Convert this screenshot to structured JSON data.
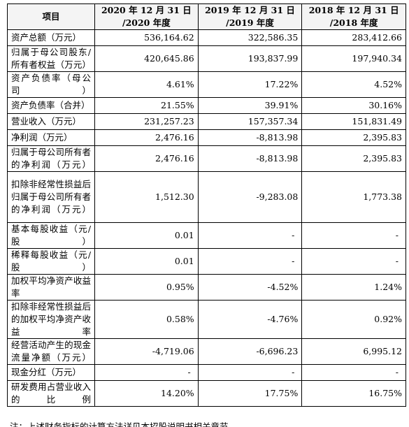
{
  "table": {
    "headers": {
      "item": "项目",
      "col1_line1": "2020 年 12 月 31 日",
      "col1_line2": "/2020 年度",
      "col2_line1": "2019 年 12 月 31 日",
      "col2_line2": "/2019 年度",
      "col3_line1": "2018 年 12 月 31 日",
      "col3_line2": "/2018 年度"
    },
    "rows": [
      {
        "label": "资产总额（万元）",
        "v2020": "536,164.62",
        "v2019": "322,586.35",
        "v2018": "283,412.66"
      },
      {
        "label": "归属于母公司股东/所有者权益（万元）",
        "v2020": "420,645.86",
        "v2019": "193,837.99",
        "v2018": "197,940.34"
      },
      {
        "label": "资产负债率（母公司）",
        "v2020": "4.61%",
        "v2019": "17.22%",
        "v2018": "4.52%"
      },
      {
        "label": "资产负债率（合并）",
        "v2020": "21.55%",
        "v2019": "39.91%",
        "v2018": "30.16%"
      },
      {
        "label": "营业收入（万元）",
        "v2020": "231,257.23",
        "v2019": "157,357.34",
        "v2018": "151,831.49"
      },
      {
        "label": "净利润（万元）",
        "v2020": "2,476.16",
        "v2019": "-8,813.98",
        "v2018": "2,395.83"
      },
      {
        "label": "归属于母公司所有者的净利润（万元）",
        "v2020": "2,476.16",
        "v2019": "-8,813.98",
        "v2018": "2,395.83"
      },
      {
        "label": "扣除非经常性损益后归属于母公司所有者的净利润（万元）",
        "v2020": "1,512.30",
        "v2019": "-9,283.08",
        "v2018": "1,773.38"
      },
      {
        "label": "基本每股收益（元/股）",
        "v2020": "0.01",
        "v2019": "-",
        "v2018": "-"
      },
      {
        "label": "稀释每股收益（元/股）",
        "v2020": "0.01",
        "v2019": "-",
        "v2018": "-"
      },
      {
        "label": "加权平均净资产收益率",
        "v2020": "0.95%",
        "v2019": "-4.52%",
        "v2018": "1.24%"
      },
      {
        "label": "扣除非经常性损益后的加权平均净资产收益率",
        "v2020": "0.58%",
        "v2019": "-4.76%",
        "v2018": "0.92%"
      },
      {
        "label": "经营活动产生的现金流量净额（万元）",
        "v2020": "-4,719.06",
        "v2019": "-6,696.23",
        "v2018": "6,995.12"
      },
      {
        "label": "现金分红（万元）",
        "v2020": "-",
        "v2019": "-",
        "v2018": "-"
      },
      {
        "label": "研发费用占营业收入的比例",
        "v2020": "14.20%",
        "v2019": "17.75%",
        "v2018": "16.75%"
      }
    ]
  },
  "footnote": "注：上述财务指标的计算方法详见本招股说明书相关章节。"
}
